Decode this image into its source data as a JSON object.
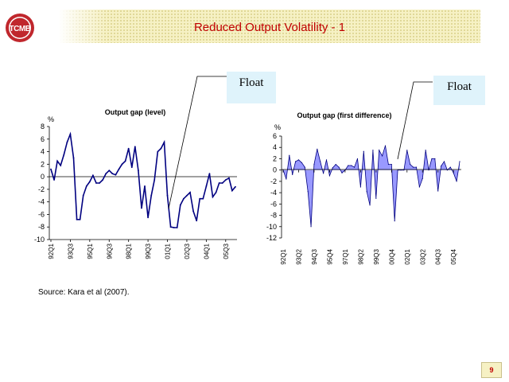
{
  "slide": {
    "title": "Reduced Output Volatility - 1",
    "logo_text": "TCMB",
    "float_label_1": "Float",
    "float_label_2": "Float",
    "source": "Source: Kara et al (2007).",
    "page_number": "9",
    "colors": {
      "title": "#c00000",
      "line": "#000080",
      "area_fill": "#9999ff",
      "float_box": "#dff3fb"
    }
  },
  "chart_data": [
    {
      "type": "line",
      "title": "Output gap (level)",
      "ylabel": "%",
      "ylim": [
        -10,
        8
      ],
      "yticks": [
        8,
        6,
        4,
        2,
        0,
        -2,
        -4,
        -6,
        -8,
        -10
      ],
      "x": [
        "92Q1",
        "92Q2",
        "92Q3",
        "92Q4",
        "93Q1",
        "93Q2",
        "93Q3",
        "93Q4",
        "94Q1",
        "94Q2",
        "94Q3",
        "94Q4",
        "95Q1",
        "95Q2",
        "95Q3",
        "95Q4",
        "96Q1",
        "96Q2",
        "96Q3",
        "96Q4",
        "97Q1",
        "97Q2",
        "97Q3",
        "97Q4",
        "98Q1",
        "98Q2",
        "98Q3",
        "98Q4",
        "99Q1",
        "99Q2",
        "99Q3",
        "99Q4",
        "00Q1",
        "00Q2",
        "00Q3",
        "00Q4",
        "01Q1",
        "01Q2",
        "01Q3",
        "01Q4",
        "02Q1",
        "02Q2",
        "02Q3",
        "02Q4",
        "03Q1",
        "03Q2",
        "03Q3",
        "03Q4",
        "04Q1",
        "04Q2",
        "04Q3",
        "04Q4",
        "05Q1",
        "05Q2",
        "05Q3",
        "05Q4",
        "06Q1",
        "06Q2"
      ],
      "xtick_labels": [
        "92Q1",
        "93Q3",
        "95Q1",
        "96Q3",
        "98Q1",
        "99Q3",
        "01Q1",
        "02Q3",
        "04Q1",
        "05Q3"
      ],
      "xtick_every": 6,
      "series": [
        {
          "values": [
            1.2,
            -0.5,
            2.5,
            1.8,
            3.5,
            5.5,
            6.8,
            3.0,
            -6.8,
            -6.8,
            -3.0,
            -1.5,
            -0.8,
            0.2,
            -1.0,
            -1.0,
            -0.5,
            0.5,
            1.0,
            0.5,
            0.3,
            1.2,
            2.0,
            2.5,
            4.5,
            1.5,
            4.8,
            1.0,
            -5.0,
            -1.5,
            -6.5,
            -3.0,
            -0.5,
            4.0,
            4.5,
            5.5,
            -3.0,
            -8.0,
            -8.1,
            -8.1,
            -4.5,
            -3.5,
            -3.0,
            -2.5,
            -5.5,
            -7.0,
            -3.5,
            -3.5,
            -1.5,
            0.5,
            -3.2,
            -2.5,
            -1.0,
            -1.0,
            -0.5,
            -0.2,
            -2.2,
            -1.6
          ]
        }
      ],
      "annotation": "Float"
    },
    {
      "type": "area",
      "title": "Output gap (first difference)",
      "ylabel": "%",
      "ylim": [
        -12,
        6
      ],
      "yticks": [
        6,
        4,
        2,
        0,
        -2,
        -4,
        -6,
        -8,
        -10,
        -12
      ],
      "x": [
        "92Q1",
        "92Q2",
        "92Q3",
        "92Q4",
        "93Q1",
        "93Q2",
        "93Q3",
        "93Q4",
        "94Q1",
        "94Q2",
        "94Q3",
        "94Q4",
        "95Q1",
        "95Q2",
        "95Q3",
        "95Q4",
        "96Q1",
        "96Q2",
        "96Q3",
        "96Q4",
        "97Q1",
        "97Q2",
        "97Q3",
        "97Q4",
        "98Q1",
        "98Q2",
        "98Q3",
        "98Q4",
        "99Q1",
        "99Q2",
        "99Q3",
        "99Q4",
        "00Q1",
        "00Q2",
        "00Q3",
        "00Q4",
        "01Q1",
        "01Q2",
        "01Q3",
        "01Q4",
        "02Q1",
        "02Q2",
        "02Q3",
        "02Q4",
        "03Q1",
        "03Q2",
        "03Q3",
        "03Q4",
        "04Q1",
        "04Q2",
        "04Q3",
        "04Q4",
        "05Q1",
        "05Q2",
        "05Q3",
        "05Q4",
        "06Q1",
        "06Q2"
      ],
      "xtick_labels": [
        "92Q1",
        "93Q2",
        "94Q3",
        "95Q4",
        "97Q1",
        "98Q2",
        "99Q3",
        "00Q4",
        "02Q1",
        "03Q2",
        "04Q3",
        "05Q4"
      ],
      "xtick_every": 5,
      "series": [
        {
          "values": [
            0.0,
            -1.6,
            2.6,
            -0.8,
            1.5,
            1.8,
            1.3,
            0.5,
            -3.8,
            -10.0,
            1.0,
            3.7,
            1.5,
            -0.6,
            1.8,
            -1.0,
            0.4,
            1.0,
            0.5,
            -0.5,
            0.0,
            0.8,
            0.8,
            0.5,
            2.0,
            -3.0,
            3.3,
            -3.8,
            -6.2,
            3.5,
            -5.0,
            3.5,
            2.5,
            4.3,
            1.0,
            1.0,
            -9.0,
            0.0,
            0.0,
            0.0,
            3.5,
            1.0,
            0.5,
            0.5,
            -3.0,
            -1.5,
            3.5,
            0.0,
            2.0,
            2.0,
            -3.7,
            0.7,
            1.5,
            0.0,
            0.5,
            -0.5,
            -2.0,
            1.5
          ]
        }
      ],
      "annotation": "Float"
    }
  ]
}
